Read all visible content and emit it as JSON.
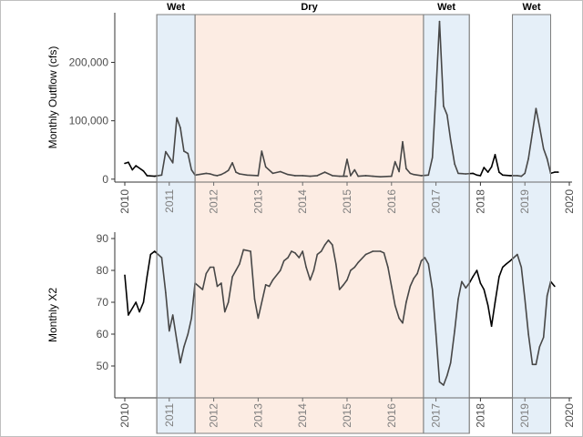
{
  "chart_data": [
    {
      "type": "line",
      "panel": "top",
      "title": "",
      "xlabel": "",
      "ylabel": "Monthly Outflow (cfs)",
      "xlim": [
        2009.6,
        2020.0
      ],
      "ylim": [
        -5000,
        285000
      ],
      "yticks": [
        0,
        100000,
        200000
      ],
      "ytick_labels": [
        "0",
        "100,000",
        "200,000"
      ],
      "xticks": [
        2010,
        2011,
        2012,
        2013,
        2014,
        2015,
        2016,
        2017,
        2018,
        2019,
        2020
      ],
      "xtick_labels": [
        "2010",
        "2011",
        "2012",
        "2013",
        "2014",
        "2015",
        "2016",
        "2017",
        "2018",
        "2019",
        "2020"
      ],
      "grid": false,
      "series": [
        {
          "values": [
            [
              2010.0,
              27000
            ],
            [
              2010.08,
              29000
            ],
            [
              2010.17,
              16000
            ],
            [
              2010.25,
              23000
            ],
            [
              2010.42,
              14000
            ],
            [
              2010.5,
              6000
            ],
            [
              2010.67,
              5000
            ],
            [
              2010.83,
              7000
            ],
            [
              2010.92,
              47000
            ],
            [
              2011.08,
              28000
            ],
            [
              2011.17,
              105000
            ],
            [
              2011.25,
              88000
            ],
            [
              2011.33,
              48000
            ],
            [
              2011.42,
              44000
            ],
            [
              2011.5,
              16000
            ],
            [
              2011.58,
              7000
            ],
            [
              2011.67,
              8000
            ],
            [
              2011.83,
              10000
            ],
            [
              2011.92,
              9000
            ],
            [
              2012.0,
              7000
            ],
            [
              2012.08,
              6000
            ],
            [
              2012.17,
              8000
            ],
            [
              2012.25,
              11000
            ],
            [
              2012.33,
              15000
            ],
            [
              2012.42,
              28000
            ],
            [
              2012.5,
              12000
            ],
            [
              2012.58,
              9000
            ],
            [
              2012.75,
              7000
            ],
            [
              2013.0,
              6000
            ],
            [
              2013.08,
              48000
            ],
            [
              2013.17,
              21000
            ],
            [
              2013.33,
              10000
            ],
            [
              2013.5,
              13000
            ],
            [
              2013.67,
              8000
            ],
            [
              2013.83,
              6000
            ],
            [
              2014.0,
              6000
            ],
            [
              2014.17,
              5000
            ],
            [
              2014.33,
              6000
            ],
            [
              2014.5,
              12000
            ],
            [
              2014.67,
              6000
            ],
            [
              2014.83,
              5000
            ],
            [
              2015.0,
              5000
            ],
            [
              2014.92,
              5000
            ],
            [
              2015.0,
              34000
            ],
            [
              2015.08,
              6000
            ],
            [
              2015.17,
              16000
            ],
            [
              2015.25,
              5000
            ],
            [
              2015.42,
              6000
            ],
            [
              2015.58,
              5000
            ],
            [
              2015.75,
              4000
            ],
            [
              2016.0,
              5000
            ],
            [
              2016.08,
              30000
            ],
            [
              2016.17,
              13000
            ],
            [
              2016.25,
              64000
            ],
            [
              2016.33,
              18000
            ],
            [
              2016.42,
              10000
            ],
            [
              2016.5,
              8000
            ],
            [
              2016.67,
              6000
            ],
            [
              2016.83,
              7000
            ],
            [
              2016.92,
              37000
            ],
            [
              2017.0,
              150000
            ],
            [
              2017.08,
              270000
            ],
            [
              2017.17,
              125000
            ],
            [
              2017.25,
              110000
            ],
            [
              2017.33,
              67000
            ],
            [
              2017.42,
              26000
            ],
            [
              2017.5,
              10000
            ],
            [
              2017.67,
              9000
            ],
            [
              2017.83,
              10000
            ],
            [
              2017.92,
              7000
            ],
            [
              2018.0,
              6000
            ],
            [
              2018.08,
              20000
            ],
            [
              2018.17,
              12000
            ],
            [
              2018.25,
              21000
            ],
            [
              2018.33,
              42000
            ],
            [
              2018.42,
              12000
            ],
            [
              2018.5,
              7000
            ],
            [
              2018.67,
              6000
            ],
            [
              2018.83,
              6000
            ],
            [
              2018.92,
              5000
            ],
            [
              2019.0,
              10000
            ],
            [
              2019.08,
              35000
            ],
            [
              2019.17,
              80000
            ],
            [
              2019.25,
              121000
            ],
            [
              2019.33,
              90000
            ],
            [
              2019.42,
              52000
            ],
            [
              2019.5,
              35000
            ],
            [
              2019.58,
              10000
            ],
            [
              2019.67,
              12000
            ],
            [
              2019.75,
              12000
            ]
          ]
        }
      ]
    },
    {
      "type": "line",
      "panel": "bottom",
      "title": "",
      "xlabel": "",
      "ylabel": "Monthly X2",
      "xlim": [
        2009.6,
        2020.0
      ],
      "ylim": [
        40,
        92
      ],
      "yticks": [
        50,
        60,
        70,
        80,
        90
      ],
      "ytick_labels": [
        "50",
        "60",
        "70",
        "80",
        "90"
      ],
      "xticks": [
        2010,
        2011,
        2012,
        2013,
        2014,
        2015,
        2016,
        2017,
        2018,
        2019,
        2020
      ],
      "xtick_labels": [
        "2010",
        "2011",
        "2012",
        "2013",
        "2014",
        "2015",
        "2016",
        "2017",
        "2018",
        "2019",
        "2020"
      ],
      "grid": false,
      "series": [
        {
          "values": [
            [
              2010.0,
              78.5
            ],
            [
              2010.08,
              66
            ],
            [
              2010.25,
              70
            ],
            [
              2010.33,
              67
            ],
            [
              2010.42,
              70
            ],
            [
              2010.5,
              78
            ],
            [
              2010.58,
              85
            ],
            [
              2010.67,
              86
            ],
            [
              2010.83,
              84
            ],
            [
              2010.92,
              73
            ],
            [
              2011.0,
              61
            ],
            [
              2011.08,
              66
            ],
            [
              2011.17,
              58
            ],
            [
              2011.25,
              51
            ],
            [
              2011.33,
              56
            ],
            [
              2011.42,
              60
            ],
            [
              2011.5,
              65
            ],
            [
              2011.58,
              76
            ],
            [
              2011.75,
              74
            ],
            [
              2011.83,
              79
            ],
            [
              2011.92,
              81
            ],
            [
              2012.0,
              81
            ],
            [
              2012.08,
              75
            ],
            [
              2012.17,
              76
            ],
            [
              2012.25,
              67
            ],
            [
              2012.33,
              70
            ],
            [
              2012.42,
              78
            ],
            [
              2012.5,
              80
            ],
            [
              2012.58,
              82
            ],
            [
              2012.67,
              86.5
            ],
            [
              2012.83,
              86
            ],
            [
              2012.92,
              71
            ],
            [
              2013.0,
              65
            ],
            [
              2013.17,
              75.5
            ],
            [
              2013.25,
              75
            ],
            [
              2013.33,
              77
            ],
            [
              2013.5,
              80
            ],
            [
              2013.58,
              83
            ],
            [
              2013.67,
              84
            ],
            [
              2013.75,
              86
            ],
            [
              2013.83,
              85.5
            ],
            [
              2013.92,
              84
            ],
            [
              2014.0,
              86
            ],
            [
              2014.08,
              81
            ],
            [
              2014.17,
              77
            ],
            [
              2014.25,
              80
            ],
            [
              2014.33,
              85
            ],
            [
              2014.42,
              86
            ],
            [
              2014.5,
              88
            ],
            [
              2014.58,
              89.5
            ],
            [
              2014.67,
              88
            ],
            [
              2014.75,
              82
            ],
            [
              2014.83,
              74
            ],
            [
              2014.92,
              75.5
            ],
            [
              2015.0,
              77
            ],
            [
              2015.08,
              80
            ],
            [
              2015.17,
              81
            ],
            [
              2015.25,
              82.5
            ],
            [
              2015.42,
              85
            ],
            [
              2015.5,
              85.5
            ],
            [
              2015.58,
              86
            ],
            [
              2015.75,
              86
            ],
            [
              2015.83,
              85.5
            ],
            [
              2015.92,
              81
            ],
            [
              2016.0,
              75
            ],
            [
              2016.08,
              69
            ],
            [
              2016.17,
              65
            ],
            [
              2016.25,
              63.5
            ],
            [
              2016.33,
              70
            ],
            [
              2016.42,
              75
            ],
            [
              2016.5,
              77.5
            ],
            [
              2016.58,
              79
            ],
            [
              2016.67,
              83
            ],
            [
              2016.75,
              84
            ],
            [
              2016.83,
              82
            ],
            [
              2016.92,
              74
            ],
            [
              2017.0,
              60
            ],
            [
              2017.08,
              45
            ],
            [
              2017.17,
              44
            ],
            [
              2017.25,
              47
            ],
            [
              2017.33,
              51
            ],
            [
              2017.42,
              61
            ],
            [
              2017.5,
              71
            ],
            [
              2017.58,
              76.5
            ],
            [
              2017.67,
              74.5
            ],
            [
              2017.75,
              76
            ],
            [
              2017.83,
              78
            ],
            [
              2017.92,
              80
            ],
            [
              2018.0,
              76
            ],
            [
              2018.08,
              74
            ],
            [
              2018.17,
              69
            ],
            [
              2018.25,
              62.5
            ],
            [
              2018.33,
              70
            ],
            [
              2018.42,
              78
            ],
            [
              2018.5,
              81
            ],
            [
              2018.58,
              82
            ],
            [
              2018.67,
              83
            ],
            [
              2018.75,
              84
            ],
            [
              2018.83,
              85
            ],
            [
              2018.92,
              81
            ],
            [
              2019.0,
              71
            ],
            [
              2019.08,
              60
            ],
            [
              2019.17,
              50.5
            ],
            [
              2019.25,
              50.5
            ],
            [
              2019.33,
              56
            ],
            [
              2019.42,
              59
            ],
            [
              2019.5,
              72
            ],
            [
              2019.58,
              76.5
            ],
            [
              2019.67,
              75
            ]
          ]
        }
      ]
    }
  ],
  "periods": [
    {
      "label": "Wet",
      "start": 2010.72,
      "end": 2011.58,
      "color": "#dce9f5"
    },
    {
      "label": "Dry",
      "start": 2011.58,
      "end": 2016.72,
      "color": "#fbe5d8"
    },
    {
      "label": "Wet",
      "start": 2016.72,
      "end": 2017.75,
      "color": "#dce9f5"
    },
    {
      "label": "Wet",
      "start": 2018.72,
      "end": 2019.58,
      "color": "#dce9f5"
    }
  ],
  "colors": {
    "line": "#000000",
    "line_shaded": "#4d4d4d",
    "wet_fill": "#dce9f5",
    "dry_fill": "#fbe5d8",
    "band_border": "#7f7f7f",
    "axis": "#333333"
  }
}
